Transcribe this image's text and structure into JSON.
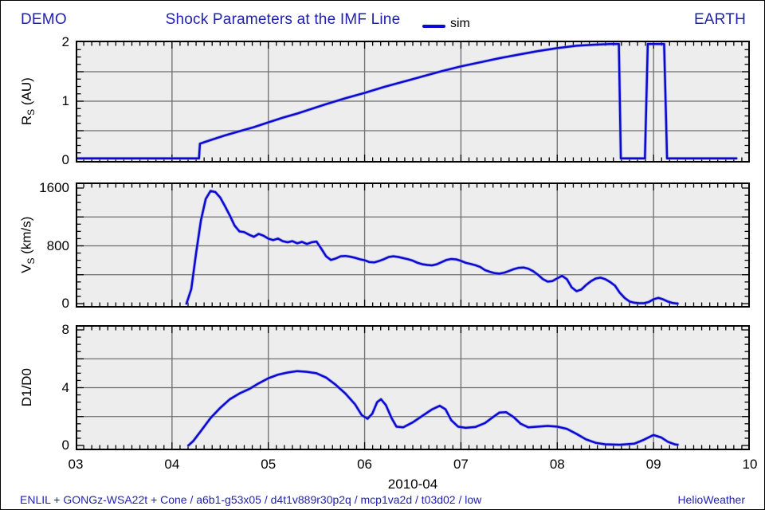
{
  "header": {
    "left": "DEMO",
    "title": "Shock Parameters at the IMF Line",
    "legend_label": "sim",
    "right": "EARTH"
  },
  "footer": {
    "left": "ENLIL + GONGz-WSA22t + Cone / a6b1-g53x05 / d4t1v889r30p2q / mcp1va2d / t03d02 / low",
    "right": "HelioWeather"
  },
  "colors": {
    "accent_blue": "#1f1fb0",
    "curve_blue": "#0a0ad0",
    "curve_halo": "#8e8ee8",
    "grid_gray": "#6e6e6e",
    "panel_bg": "#ededed",
    "frame_black": "#000000"
  },
  "x_axis": {
    "title": "2010-04",
    "range": [
      3,
      10
    ],
    "tick_labels": [
      "03",
      "04",
      "05",
      "06",
      "07",
      "08",
      "09",
      "10"
    ],
    "minor_per_day": 12
  },
  "chart_data": [
    {
      "type": "line",
      "name": "shock-distance",
      "ylabel": {
        "pre": "R",
        "sub": "S",
        "post": " (AU)"
      },
      "ylim": [
        0,
        2
      ],
      "yticks": [
        0,
        1,
        2
      ],
      "ygrid": [
        0.5,
        1.0,
        1.5
      ],
      "yminor": 0.125,
      "legend": "sim",
      "series": [
        [
          3.0,
          0.03
        ],
        [
          4.28,
          0.03
        ],
        [
          4.29,
          0.28
        ],
        [
          4.4,
          0.34
        ],
        [
          4.55,
          0.42
        ],
        [
          4.7,
          0.49
        ],
        [
          4.85,
          0.56
        ],
        [
          5.0,
          0.64
        ],
        [
          5.15,
          0.72
        ],
        [
          5.3,
          0.79
        ],
        [
          5.45,
          0.87
        ],
        [
          5.6,
          0.95
        ],
        [
          5.8,
          1.05
        ],
        [
          6.0,
          1.14
        ],
        [
          6.2,
          1.24
        ],
        [
          6.4,
          1.33
        ],
        [
          6.6,
          1.42
        ],
        [
          6.8,
          1.51
        ],
        [
          7.0,
          1.59
        ],
        [
          7.2,
          1.66
        ],
        [
          7.4,
          1.73
        ],
        [
          7.6,
          1.79
        ],
        [
          7.8,
          1.85
        ],
        [
          8.0,
          1.9
        ],
        [
          8.2,
          1.94
        ],
        [
          8.4,
          1.96
        ],
        [
          8.55,
          1.97
        ],
        [
          8.64,
          1.97
        ],
        [
          8.66,
          0.03
        ],
        [
          8.91,
          0.03
        ],
        [
          8.94,
          1.97
        ],
        [
          9.11,
          1.97
        ],
        [
          9.14,
          0.03
        ],
        [
          9.86,
          0.03
        ]
      ]
    },
    {
      "type": "line",
      "name": "shock-speed",
      "ylabel": {
        "pre": "V",
        "sub": "S",
        "post": " (km/s)"
      },
      "ylim": [
        0,
        1600
      ],
      "yticks": [
        0,
        800,
        1600
      ],
      "ygrid": [
        400,
        800,
        1200
      ],
      "yminor": 100,
      "legend": "sim",
      "series": [
        [
          4.15,
          0
        ],
        [
          4.2,
          200
        ],
        [
          4.25,
          700
        ],
        [
          4.3,
          1150
        ],
        [
          4.35,
          1450
        ],
        [
          4.4,
          1560
        ],
        [
          4.45,
          1545
        ],
        [
          4.5,
          1470
        ],
        [
          4.55,
          1350
        ],
        [
          4.6,
          1220
        ],
        [
          4.65,
          1080
        ],
        [
          4.7,
          1000
        ],
        [
          4.75,
          990
        ],
        [
          4.8,
          955
        ],
        [
          4.85,
          925
        ],
        [
          4.9,
          965
        ],
        [
          4.95,
          940
        ],
        [
          5.0,
          900
        ],
        [
          5.05,
          880
        ],
        [
          5.1,
          900
        ],
        [
          5.15,
          865
        ],
        [
          5.2,
          850
        ],
        [
          5.25,
          865
        ],
        [
          5.3,
          835
        ],
        [
          5.35,
          855
        ],
        [
          5.4,
          825
        ],
        [
          5.45,
          850
        ],
        [
          5.5,
          860
        ],
        [
          5.55,
          760
        ],
        [
          5.6,
          655
        ],
        [
          5.65,
          605
        ],
        [
          5.7,
          625
        ],
        [
          5.75,
          655
        ],
        [
          5.8,
          660
        ],
        [
          5.85,
          650
        ],
        [
          5.9,
          635
        ],
        [
          5.95,
          615
        ],
        [
          6.0,
          600
        ],
        [
          6.05,
          575
        ],
        [
          6.1,
          570
        ],
        [
          6.15,
          590
        ],
        [
          6.2,
          615
        ],
        [
          6.25,
          645
        ],
        [
          6.3,
          655
        ],
        [
          6.35,
          645
        ],
        [
          6.4,
          630
        ],
        [
          6.45,
          615
        ],
        [
          6.5,
          595
        ],
        [
          6.55,
          565
        ],
        [
          6.6,
          545
        ],
        [
          6.65,
          535
        ],
        [
          6.7,
          530
        ],
        [
          6.75,
          545
        ],
        [
          6.8,
          575
        ],
        [
          6.85,
          605
        ],
        [
          6.9,
          618
        ],
        [
          6.95,
          612
        ],
        [
          7.0,
          592
        ],
        [
          7.05,
          565
        ],
        [
          7.1,
          550
        ],
        [
          7.15,
          532
        ],
        [
          7.2,
          508
        ],
        [
          7.25,
          465
        ],
        [
          7.3,
          440
        ],
        [
          7.35,
          422
        ],
        [
          7.4,
          415
        ],
        [
          7.45,
          428
        ],
        [
          7.5,
          452
        ],
        [
          7.55,
          478
        ],
        [
          7.6,
          495
        ],
        [
          7.65,
          500
        ],
        [
          7.7,
          483
        ],
        [
          7.75,
          448
        ],
        [
          7.8,
          400
        ],
        [
          7.85,
          340
        ],
        [
          7.9,
          305
        ],
        [
          7.95,
          312
        ],
        [
          8.0,
          350
        ],
        [
          8.05,
          385
        ],
        [
          8.1,
          338
        ],
        [
          8.15,
          225
        ],
        [
          8.2,
          172
        ],
        [
          8.25,
          195
        ],
        [
          8.3,
          258
        ],
        [
          8.35,
          310
        ],
        [
          8.4,
          348
        ],
        [
          8.45,
          360
        ],
        [
          8.5,
          338
        ],
        [
          8.55,
          298
        ],
        [
          8.6,
          248
        ],
        [
          8.65,
          150
        ],
        [
          8.7,
          78
        ],
        [
          8.75,
          30
        ],
        [
          8.8,
          12
        ],
        [
          8.85,
          6
        ],
        [
          8.9,
          6
        ],
        [
          8.95,
          22
        ],
        [
          9.0,
          60
        ],
        [
          9.05,
          80
        ],
        [
          9.1,
          58
        ],
        [
          9.15,
          28
        ],
        [
          9.2,
          8
        ],
        [
          9.25,
          0
        ]
      ]
    },
    {
      "type": "line",
      "name": "density-ratio",
      "ylabel": {
        "pre": "D1/D0",
        "sub": "",
        "post": ""
      },
      "ylim": [
        0,
        8
      ],
      "yticks": [
        0,
        4,
        8
      ],
      "ygrid": [
        2,
        4,
        6
      ],
      "yminor": 0.5,
      "legend": "sim",
      "series": [
        [
          4.17,
          0
        ],
        [
          4.22,
          0.3
        ],
        [
          4.3,
          1.0
        ],
        [
          4.4,
          1.9
        ],
        [
          4.5,
          2.6
        ],
        [
          4.6,
          3.2
        ],
        [
          4.7,
          3.6
        ],
        [
          4.8,
          3.9
        ],
        [
          4.9,
          4.3
        ],
        [
          5.0,
          4.65
        ],
        [
          5.1,
          4.9
        ],
        [
          5.2,
          5.05
        ],
        [
          5.3,
          5.15
        ],
        [
          5.4,
          5.1
        ],
        [
          5.5,
          5.0
        ],
        [
          5.6,
          4.7
        ],
        [
          5.7,
          4.2
        ],
        [
          5.8,
          3.6
        ],
        [
          5.9,
          2.85
        ],
        [
          5.97,
          2.1
        ],
        [
          6.03,
          1.85
        ],
        [
          6.08,
          2.2
        ],
        [
          6.13,
          3.0
        ],
        [
          6.17,
          3.2
        ],
        [
          6.22,
          2.8
        ],
        [
          6.28,
          1.9
        ],
        [
          6.33,
          1.3
        ],
        [
          6.4,
          1.25
        ],
        [
          6.5,
          1.6
        ],
        [
          6.6,
          2.05
        ],
        [
          6.7,
          2.5
        ],
        [
          6.78,
          2.75
        ],
        [
          6.84,
          2.5
        ],
        [
          6.9,
          1.75
        ],
        [
          6.97,
          1.3
        ],
        [
          7.05,
          1.22
        ],
        [
          7.15,
          1.28
        ],
        [
          7.25,
          1.55
        ],
        [
          7.33,
          1.95
        ],
        [
          7.4,
          2.28
        ],
        [
          7.47,
          2.3
        ],
        [
          7.55,
          1.95
        ],
        [
          7.62,
          1.5
        ],
        [
          7.7,
          1.25
        ],
        [
          7.8,
          1.3
        ],
        [
          7.9,
          1.35
        ],
        [
          8.0,
          1.3
        ],
        [
          8.1,
          1.15
        ],
        [
          8.2,
          0.8
        ],
        [
          8.3,
          0.42
        ],
        [
          8.4,
          0.18
        ],
        [
          8.5,
          0.08
        ],
        [
          8.65,
          0.05
        ],
        [
          8.8,
          0.12
        ],
        [
          8.9,
          0.4
        ],
        [
          9.0,
          0.72
        ],
        [
          9.08,
          0.55
        ],
        [
          9.15,
          0.25
        ],
        [
          9.22,
          0.08
        ],
        [
          9.25,
          0.05
        ]
      ]
    }
  ]
}
